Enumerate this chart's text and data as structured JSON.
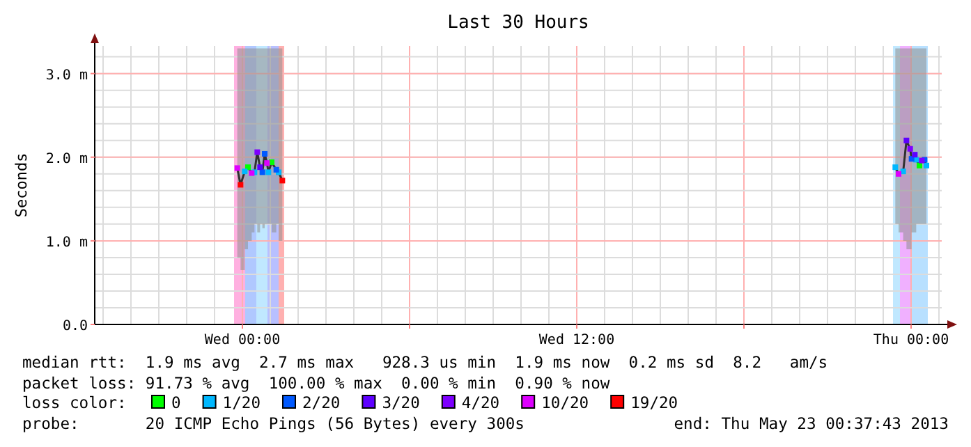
{
  "chart_data": {
    "type": "line",
    "title": "Last 30 Hours",
    "ylabel": "Seconds",
    "legend_title": "loss color:",
    "legend": "bottom",
    "grid": true,
    "marker": "square",
    "xlim": [
      "2013-05-21T18:42",
      "2013-05-23T01:06"
    ],
    "xticks": [
      {
        "value": "2013-05-22T00:00",
        "label": "Wed 00:00"
      },
      {
        "value": "2013-05-22T06:00",
        "label": null
      },
      {
        "value": "2013-05-22T12:00",
        "label": "Wed 12:00"
      },
      {
        "value": "2013-05-22T18:00",
        "label": null
      },
      {
        "value": "2013-05-23T00:00",
        "label": "Thu 00:00"
      }
    ],
    "ylim": [
      0,
      3.33
    ],
    "yticks": [
      {
        "value": 0,
        "label": "0.0"
      },
      {
        "value": 1,
        "label": "1.0 m"
      },
      {
        "value": 2,
        "label": "2.0 m"
      },
      {
        "value": 3,
        "label": "3.0 m"
      }
    ],
    "bands": [
      {
        "axis": "x",
        "from": "2013-05-21T23:42",
        "to": "2013-05-22T00:06",
        "color": "#ffb0e0"
      },
      {
        "axis": "x",
        "from": "2013-05-22T00:06",
        "to": "2013-05-22T00:30",
        "color": "#b0c8ff"
      },
      {
        "axis": "x",
        "from": "2013-05-22T00:30",
        "to": "2013-05-22T00:54",
        "color": "#c0e8ff"
      },
      {
        "axis": "x",
        "from": "2013-05-22T00:54",
        "to": "2013-05-22T01:18",
        "color": "#b8c0ff"
      },
      {
        "axis": "x",
        "from": "2013-05-22T01:18",
        "to": "2013-05-22T01:30",
        "color": "#ffb0b0"
      },
      {
        "axis": "x",
        "from": "2013-05-22T23:21",
        "to": "2013-05-22T23:36",
        "color": "#c0e8ff"
      },
      {
        "axis": "x",
        "from": "2013-05-22T23:36",
        "to": "2013-05-23T00:00",
        "color": "#f0b0ff"
      },
      {
        "axis": "x",
        "from": "2013-05-23T00:00",
        "to": "2013-05-23T00:36",
        "color": "#b8e0ff"
      }
    ],
    "series": [
      {
        "type": "line",
        "color": "#303030",
        "marker": "none",
        "x": [
          "2013-05-21T23:49",
          "2013-05-21T23:56",
          "2013-05-22T00:05",
          "2013-05-22T00:12",
          "2013-05-22T00:20",
          "2013-05-22T00:26",
          "2013-05-22T00:32",
          "2013-05-22T00:38",
          "2013-05-22T00:43",
          "2013-05-22T00:48",
          "2013-05-22T00:53",
          "2013-05-22T00:56",
          "2013-05-22T01:03",
          "2013-05-22T01:13",
          "2013-05-22T01:18",
          "2013-05-22T01:26",
          "2013-05-22T12:00",
          "2013-05-22T23:26",
          "2013-05-22T23:33",
          "2013-05-22T23:43",
          "2013-05-22T23:50",
          "2013-05-22T23:58",
          "2013-05-23T00:01",
          "2013-05-23T00:08",
          "2013-05-23T00:11",
          "2013-05-23T00:18",
          "2013-05-23T00:23",
          "2013-05-23T00:29",
          "2013-05-23T00:33"
        ],
        "values": [
          1.87,
          1.67,
          1.83,
          1.88,
          1.81,
          1.82,
          2.06,
          1.88,
          1.82,
          2.04,
          1.93,
          1.82,
          1.94,
          1.85,
          1.82,
          1.72,
          null,
          1.88,
          1.8,
          1.83,
          2.2,
          2.1,
          1.98,
          2.03,
          1.97,
          1.9,
          1.96,
          1.97,
          1.9
        ],
        "lower": [
          0.8,
          0.65,
          0.9,
          1.0,
          1.1,
          1.2,
          1.1,
          1.2,
          1.15,
          1.2,
          1.2,
          1.2,
          1.1,
          1.2,
          1.0,
          0.75,
          null,
          1.2,
          1.1,
          1.0,
          0.9,
          0.9,
          1.1,
          1.1,
          1.2,
          1.2,
          1.2,
          1.2,
          1.3
        ],
        "upper": [
          3.3,
          3.3,
          3.3,
          3.3,
          3.3,
          3.3,
          3.3,
          3.3,
          3.3,
          3.3,
          3.3,
          3.3,
          3.3,
          3.3,
          3.3,
          3.3,
          null,
          3.3,
          3.3,
          3.3,
          3.3,
          3.3,
          3.3,
          3.3,
          3.3,
          3.3,
          3.3,
          3.3,
          3.3
        ]
      },
      {
        "type": "scatter",
        "name": "0",
        "color": "#00ff00",
        "x": [
          "2013-05-22T00:12",
          "2013-05-22T01:03",
          "2013-05-23T00:18"
        ],
        "values": [
          1.88,
          1.94,
          1.9
        ]
      },
      {
        "type": "scatter",
        "name": "1/20",
        "color": "#00b8ff",
        "x": [
          "2013-05-22T00:05",
          "2013-05-22T00:26",
          "2013-05-22T00:56",
          "2013-05-22T01:18",
          "2013-05-22T23:26",
          "2013-05-22T23:43",
          "2013-05-23T00:11",
          "2013-05-23T00:33"
        ],
        "values": [
          1.83,
          1.82,
          1.82,
          1.82,
          1.88,
          1.83,
          1.97,
          1.9
        ]
      },
      {
        "type": "scatter",
        "name": "2/20",
        "color": "#0059ff",
        "x": [
          "2013-05-22T00:43",
          "2013-05-22T00:48",
          "2013-05-22T01:13",
          "2013-05-23T00:01",
          "2013-05-23T00:29"
        ],
        "values": [
          1.82,
          2.04,
          1.85,
          1.98,
          1.97
        ]
      },
      {
        "type": "scatter",
        "name": "3/20",
        "color": "#5e00ff",
        "x": [
          "2013-05-22T00:38",
          "2013-05-22T23:50",
          "2013-05-23T00:08"
        ],
        "values": [
          1.88,
          2.2,
          2.03
        ]
      },
      {
        "type": "scatter",
        "name": "4/20",
        "color": "#7e00ff",
        "x": [
          "2013-05-22T00:32",
          "2013-05-22T23:58",
          "2013-05-23T00:23"
        ],
        "values": [
          2.06,
          2.1,
          1.96
        ]
      },
      {
        "type": "scatter",
        "name": "10/20",
        "color": "#dd00ff",
        "x": [
          "2013-05-21T23:49",
          "2013-05-22T00:20",
          "2013-05-22T00:53",
          "2013-05-22T23:33"
        ],
        "values": [
          1.87,
          1.81,
          1.93,
          1.8
        ]
      },
      {
        "type": "scatter",
        "name": "19/20",
        "color": "#ff0000",
        "x": [
          "2013-05-21T23:56",
          "2013-05-22T01:26"
        ],
        "values": [
          1.67,
          1.72
        ]
      }
    ],
    "annotations": [
      "median rtt:  1.9 ms avg  2.7 ms max   928.3 us min  1.9 ms now  0.2 ms sd  8.2   am/s",
      "packet loss: 91.73 % avg  100.00 % max  0.00 % min  0.90 % now",
      "probe:       20 ICMP Echo Pings (56 Bytes) every 300s",
      "end: Thu May 23 00:37:43 2013"
    ]
  }
}
